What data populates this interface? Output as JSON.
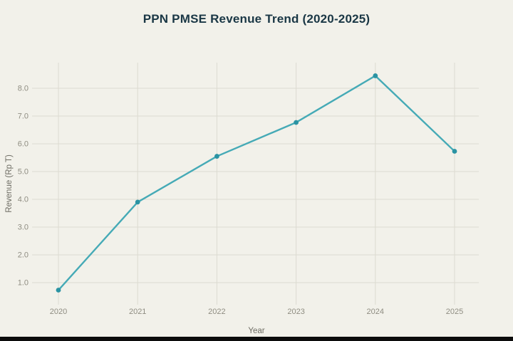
{
  "chart_data": {
    "type": "line",
    "title": "PPN PMSE Revenue Trend (2020-2025)",
    "xlabel": "Year",
    "ylabel": "Revenue (Rp T)",
    "categories": [
      "2020",
      "2021",
      "2022",
      "2023",
      "2024",
      "2025"
    ],
    "values": [
      0.73,
      3.9,
      5.55,
      6.77,
      8.45,
      5.73
    ],
    "ytick_labels": [
      "1.0",
      "2.0",
      "3.0",
      "4.0",
      "5.0",
      "6.0",
      "7.0",
      "8.0"
    ],
    "yticks": [
      1,
      2,
      3,
      4,
      5,
      6,
      7,
      8
    ],
    "ylim": [
      0.3,
      8.9
    ],
    "grid": true,
    "legend": false,
    "colors": {
      "line": "#45aab6",
      "marker": "#2a93a3",
      "background": "#f2f1ea",
      "grid": "#dcdbd1",
      "title": "#1a3745",
      "tick": "#8f8d82",
      "axis_label": "#6e6d64",
      "bottom_bar": "#0c0c0c"
    }
  }
}
